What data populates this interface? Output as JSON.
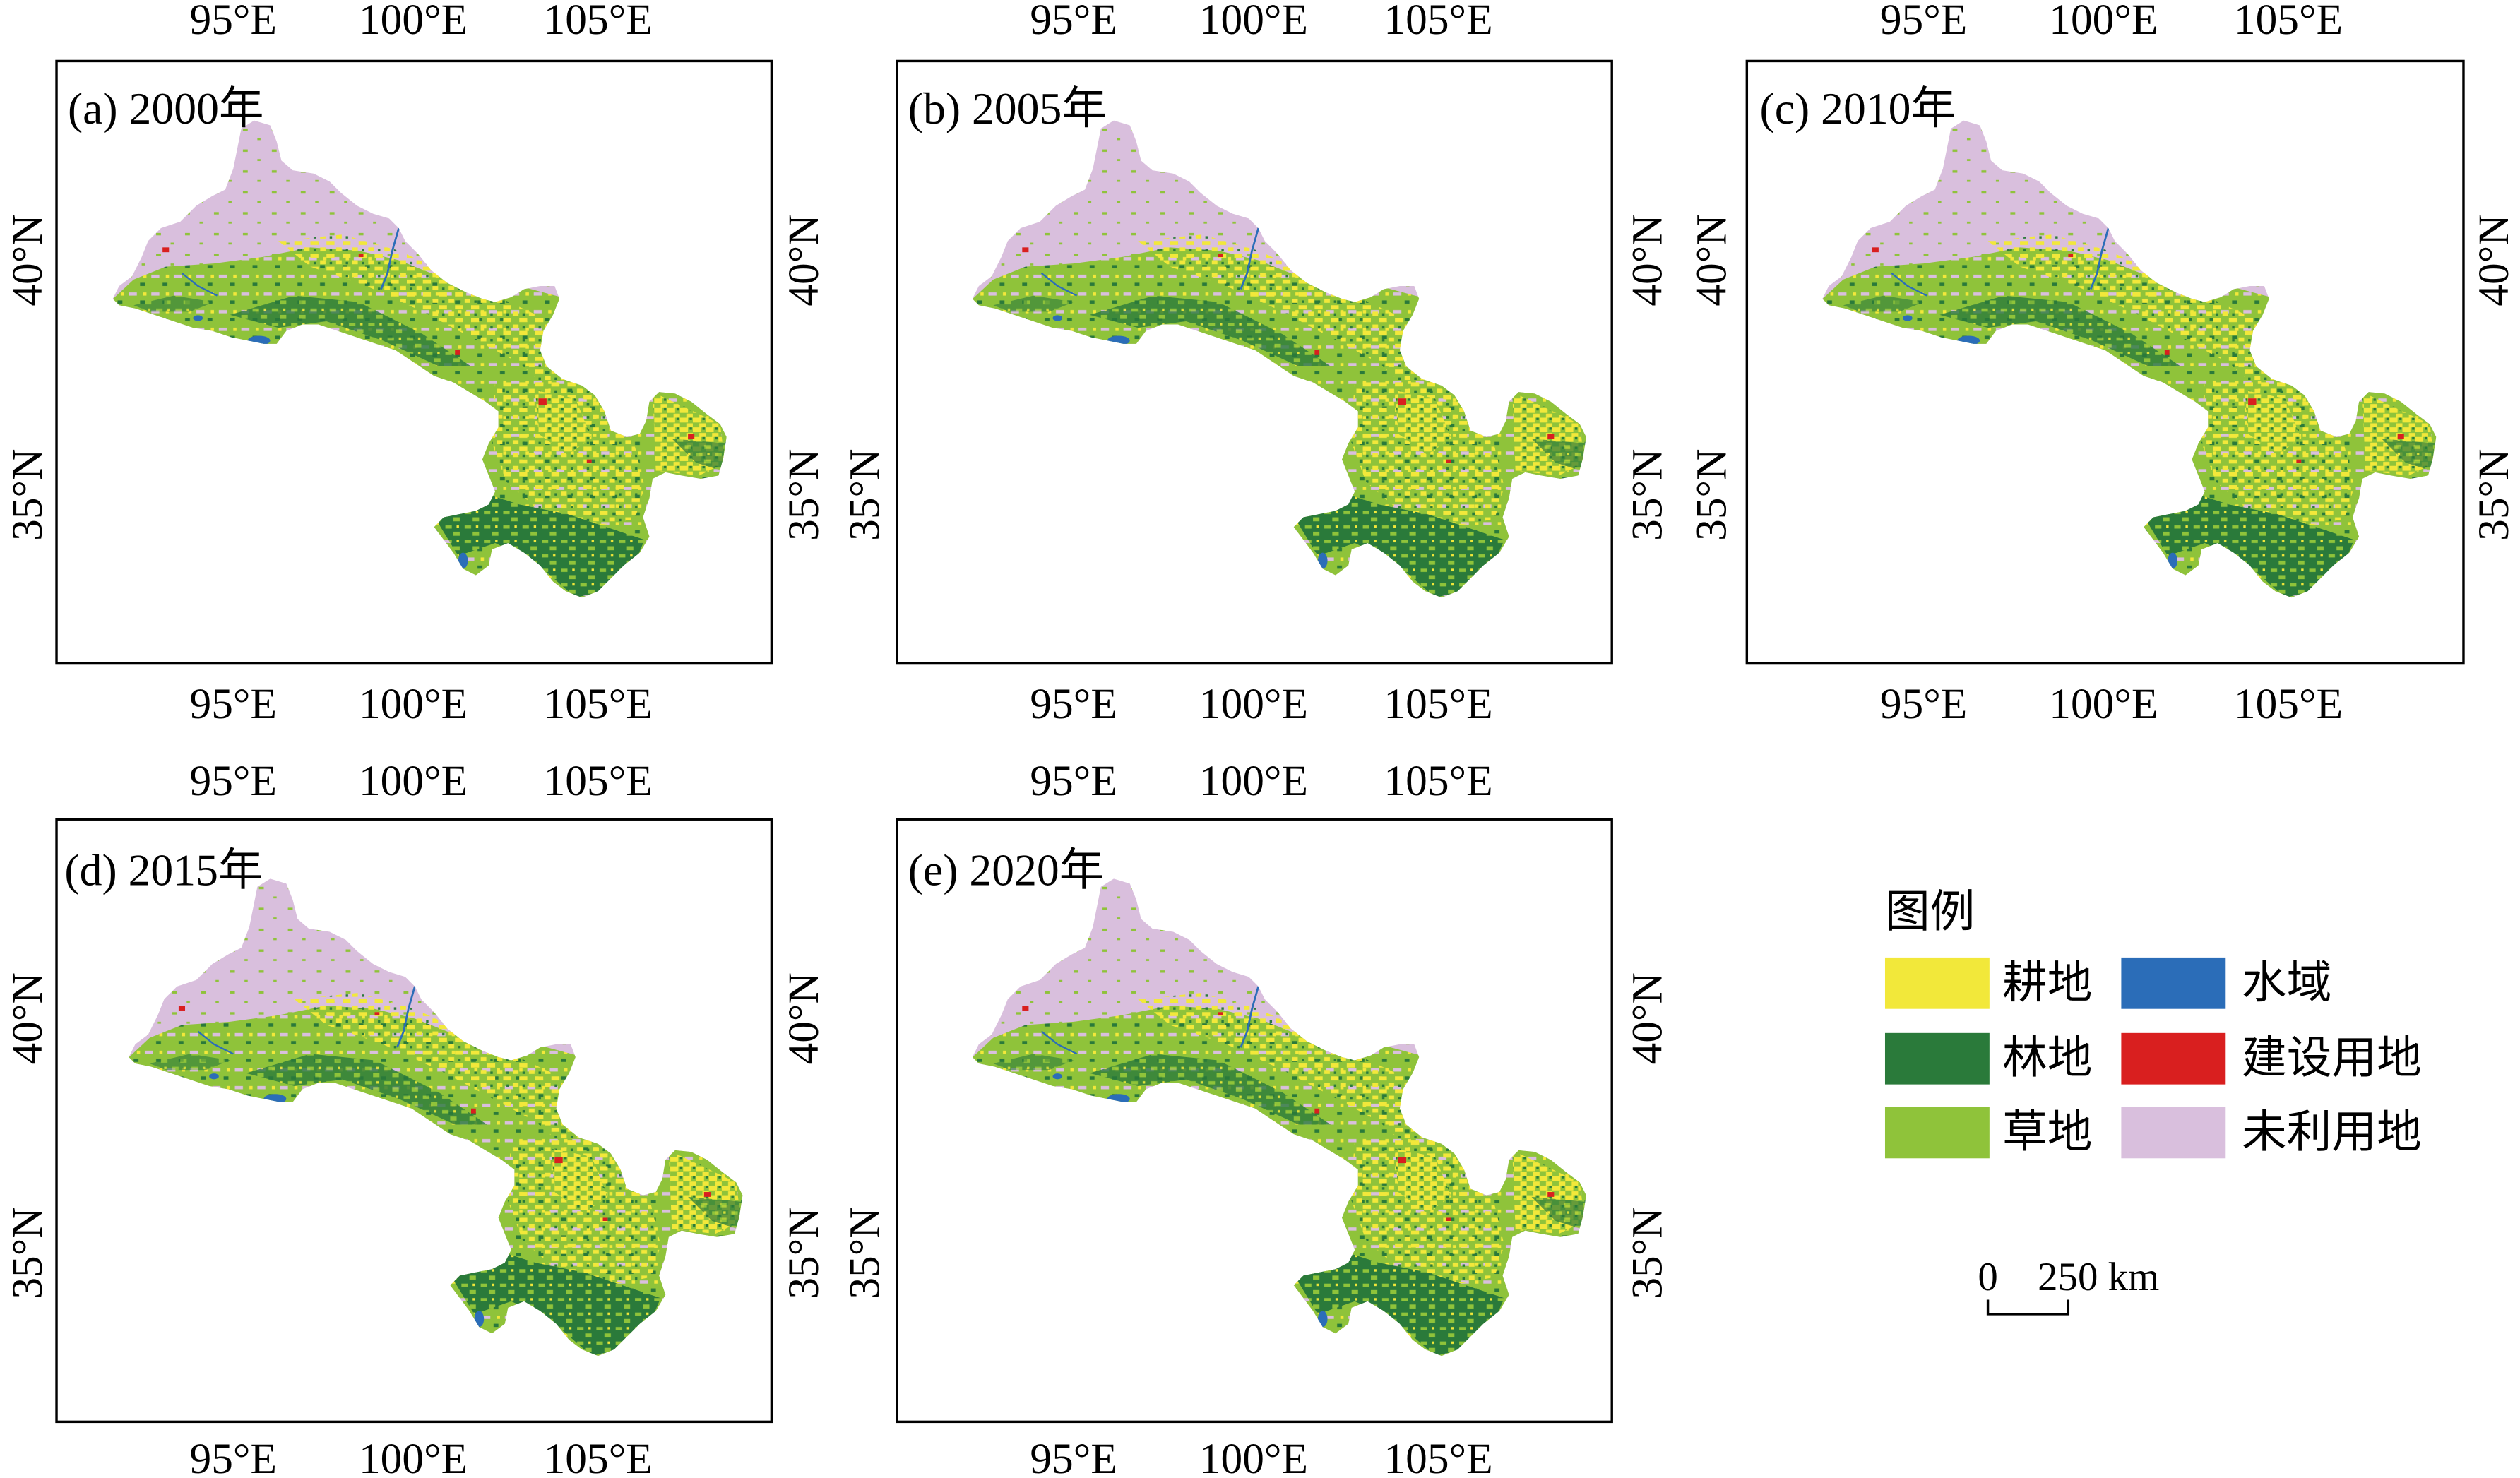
{
  "figure": {
    "panels": [
      {
        "title": "(a) 2000年"
      },
      {
        "title": "(b) 2005年"
      },
      {
        "title": "(c) 2010年"
      },
      {
        "title": "(d) 2015年"
      },
      {
        "title": "(e) 2020年"
      }
    ],
    "longitude_labels": [
      "95°E",
      "100°E",
      "105°E"
    ],
    "latitude_labels": [
      "40°N",
      "35°N"
    ]
  },
  "legend": {
    "title": "图例",
    "items": [
      {
        "label": "耕地",
        "color": "#F2E83A"
      },
      {
        "label": "水域",
        "color": "#2B6DB8"
      },
      {
        "label": "林地",
        "color": "#2A7A3A"
      },
      {
        "label": "建设用地",
        "color": "#D91F1F"
      },
      {
        "label": "草地",
        "color": "#8FC33A"
      },
      {
        "label": "未利用地",
        "color": "#D9BFDD"
      }
    ]
  },
  "scale_bar": {
    "zero": "0",
    "distance": "250 km"
  }
}
